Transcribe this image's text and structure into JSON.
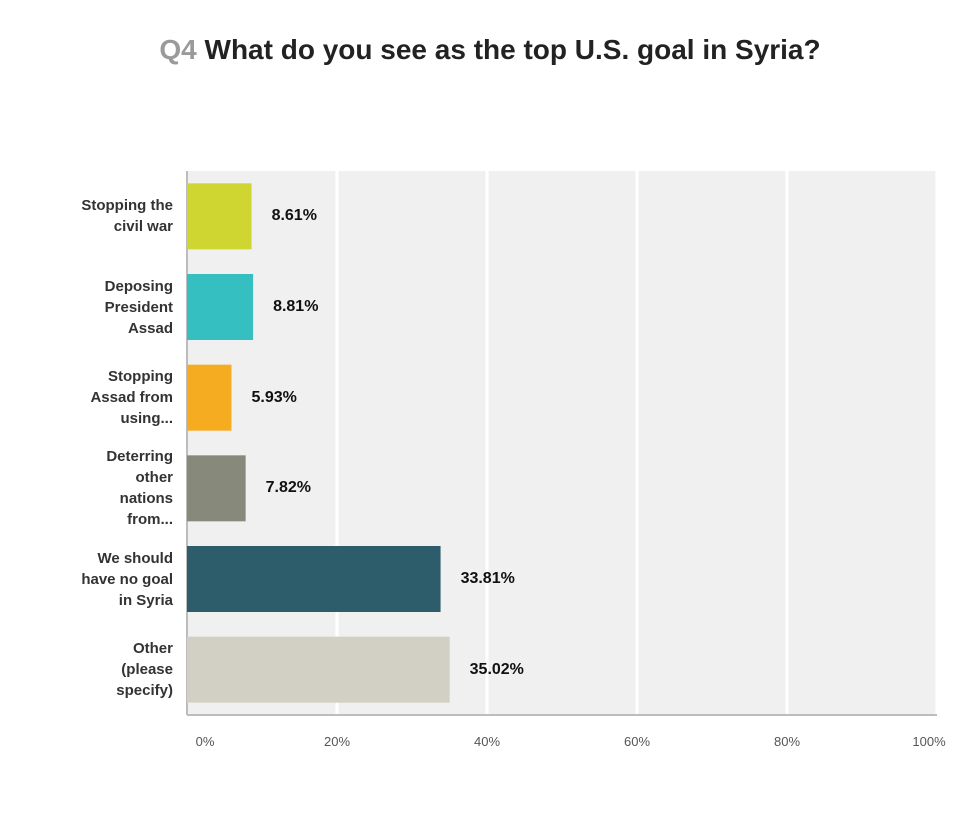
{
  "title": {
    "qnum": "Q4",
    "text": "What do you see as the top U.S. goal in Syria?"
  },
  "chart_data": {
    "type": "bar",
    "orientation": "horizontal",
    "categories": [
      [
        "Stopping the",
        "civil war"
      ],
      [
        "Deposing",
        "President",
        "Assad"
      ],
      [
        "Stopping",
        "Assad from",
        "using..."
      ],
      [
        "Deterring",
        "other",
        "nations",
        "from..."
      ],
      [
        "We should",
        "have no goal",
        "in Syria"
      ],
      [
        "Other",
        "(please",
        "specify)"
      ]
    ],
    "values": [
      8.61,
      8.81,
      5.93,
      7.82,
      33.81,
      35.02
    ],
    "value_labels": [
      "8.61%",
      "8.81%",
      "5.93%",
      "7.82%",
      "33.81%",
      "35.02%"
    ],
    "colors": [
      "#cfd631",
      "#36bfc1",
      "#f5ac20",
      "#878a7b",
      "#2d5d6b",
      "#d2d0c4"
    ],
    "xlim": [
      0,
      100
    ],
    "x_ticks": [
      "0%",
      "20%",
      "40%",
      "60%",
      "80%",
      "100%"
    ],
    "grid": true,
    "plot_background": "#f0f0f0"
  }
}
